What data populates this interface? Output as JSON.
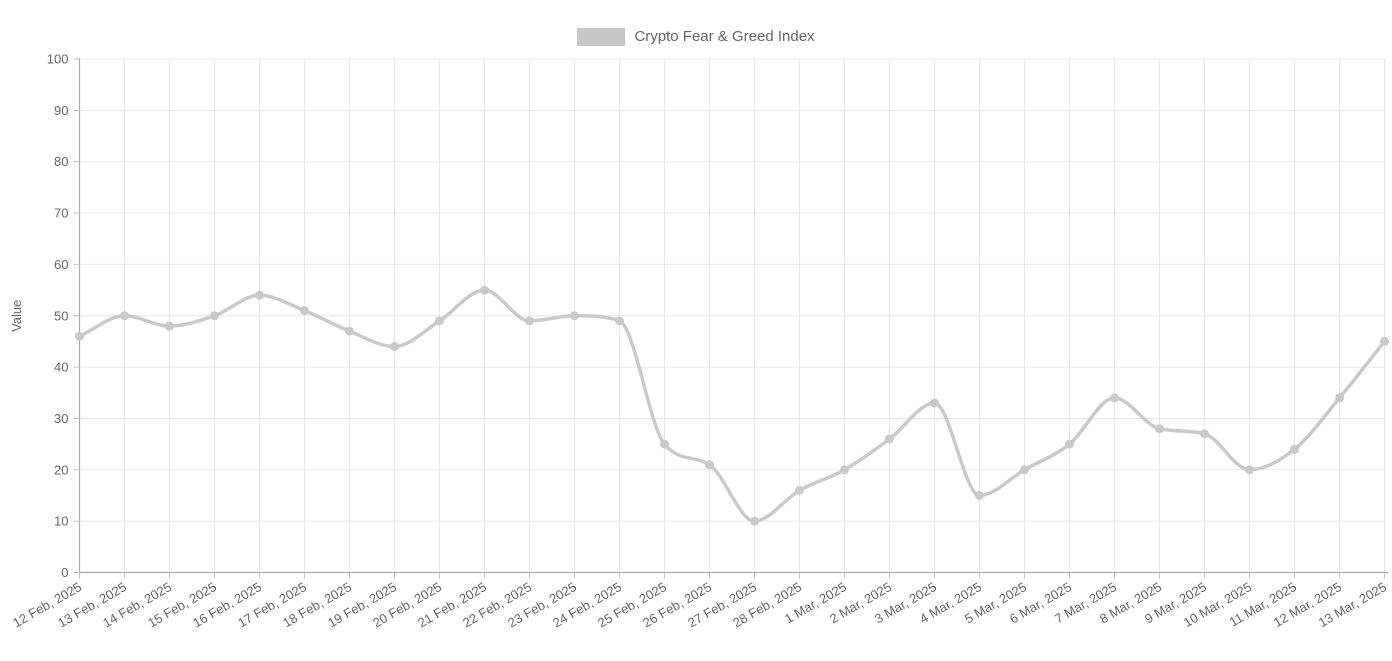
{
  "legend": {
    "label": "Crypto Fear & Greed Index",
    "swatch_color": "#c7c7c7"
  },
  "colors": {
    "background": "#ffffff",
    "line": "#c9c9c9",
    "point": "#c9c9c9",
    "grid": "#e8e8e8",
    "axis": "#ababab",
    "tick_mark": "#c2c2c2",
    "text": "#666666"
  },
  "chart_data": {
    "type": "line",
    "title": "",
    "legend_entries": [
      "Crypto Fear & Greed Index"
    ],
    "legend_position": "top",
    "xlabel": "",
    "ylabel": "Value",
    "ylim": [
      0,
      100
    ],
    "y_tick_step": 10,
    "grid": true,
    "smooth": true,
    "categories": [
      "12 Feb, 2025",
      "13 Feb, 2025",
      "14 Feb, 2025",
      "15 Feb, 2025",
      "16 Feb, 2025",
      "17 Feb, 2025",
      "18 Feb, 2025",
      "19 Feb, 2025",
      "20 Feb, 2025",
      "21 Feb, 2025",
      "22 Feb, 2025",
      "23 Feb, 2025",
      "24 Feb, 2025",
      "25 Feb, 2025",
      "26 Feb, 2025",
      "27 Feb, 2025",
      "28 Feb, 2025",
      "1 Mar, 2025",
      "2 Mar, 2025",
      "3 Mar, 2025",
      "4 Mar, 2025",
      "5 Mar, 2025",
      "6 Mar, 2025",
      "7 Mar, 2025",
      "8 Mar, 2025",
      "9 Mar, 2025",
      "10 Mar, 2025",
      "11 Mar, 2025",
      "12 Mar, 2025",
      "13 Mar, 2025"
    ],
    "series": [
      {
        "name": "Crypto Fear & Greed Index",
        "values": [
          46,
          50,
          48,
          50,
          54,
          51,
          47,
          44,
          49,
          55,
          49,
          50,
          49,
          25,
          21,
          10,
          16,
          20,
          26,
          33,
          15,
          20,
          25,
          34,
          28,
          27,
          20,
          24,
          34,
          45
        ]
      }
    ]
  }
}
